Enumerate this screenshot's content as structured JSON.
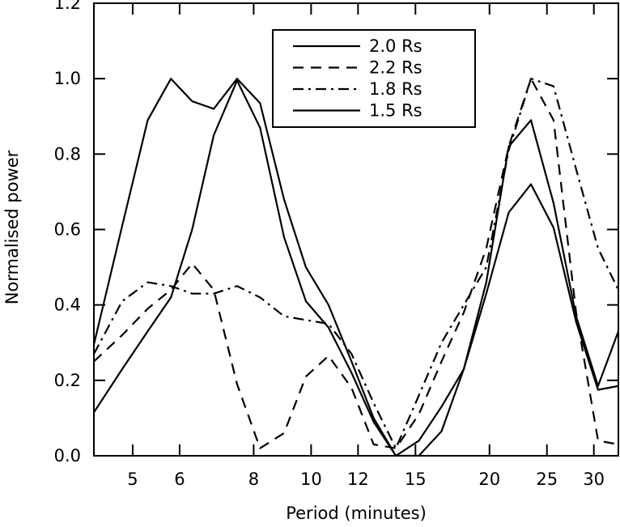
{
  "chart_data": {
    "type": "line",
    "xlabel": "Period (minutes)",
    "ylabel": "Normalised power",
    "x_scale": "log",
    "xlim": [
      4.3,
      33
    ],
    "ylim": [
      0,
      1.2
    ],
    "x_ticks": [
      {
        "value": 5,
        "label": "5"
      },
      {
        "value": 6,
        "label": "6"
      },
      {
        "value": 8,
        "label": "8"
      },
      {
        "value": 10,
        "label": "10"
      },
      {
        "value": 12,
        "label": "12"
      },
      {
        "value": 15,
        "label": "15"
      },
      {
        "value": 20,
        "label": "20"
      },
      {
        "value": 25,
        "label": "25"
      },
      {
        "value": 30,
        "label": "30"
      }
    ],
    "y_ticks": [
      {
        "value": 0,
        "label": "0.0"
      },
      {
        "value": 0.2,
        "label": "0.2"
      },
      {
        "value": 0.4,
        "label": "0.4"
      },
      {
        "value": 0.6,
        "label": "0.6"
      },
      {
        "value": 0.8,
        "label": "0.8"
      },
      {
        "value": 1.0,
        "label": "1.0"
      },
      {
        "value": 1.2,
        "label": "1.2"
      }
    ],
    "legend_position": "top-right",
    "grid": false,
    "series": [
      {
        "name": "2.0 Rs",
        "style": "solid",
        "x": [
          4.3,
          4.8,
          5.3,
          5.8,
          6.3,
          6.85,
          7.5,
          8.2,
          9.0,
          9.8,
          10.7,
          11.7,
          12.75,
          13.9,
          15.2,
          16.6,
          18.1,
          19.75,
          21.55,
          23.5,
          25.65,
          28.0,
          30.5,
          33.0
        ],
        "y": [
          0.295,
          0.61,
          0.89,
          1.0,
          0.94,
          0.92,
          1.0,
          0.935,
          0.68,
          0.5,
          0.4,
          0.25,
          0.1,
          0.0,
          0.0,
          0.065,
          0.23,
          0.43,
          0.645,
          0.72,
          0.605,
          0.355,
          0.175,
          0.185
        ]
      },
      {
        "name": "2.2 Rs",
        "style": "dashed",
        "x": [
          4.3,
          4.8,
          5.3,
          5.8,
          6.3,
          6.85,
          7.5,
          8.2,
          9.0,
          9.8,
          10.7,
          11.7,
          12.75,
          13.9,
          15.2,
          16.6,
          18.1,
          19.75,
          21.55,
          23.5,
          25.65,
          28.0,
          30.5,
          33.0
        ],
        "y": [
          0.25,
          0.32,
          0.39,
          0.44,
          0.51,
          0.44,
          0.19,
          0.02,
          0.06,
          0.21,
          0.265,
          0.18,
          0.03,
          0.02,
          0.11,
          0.25,
          0.38,
          0.55,
          0.82,
          1.0,
          0.89,
          0.38,
          0.04,
          0.03
        ]
      },
      {
        "name": "1.8 Rs",
        "style": "dashdot",
        "x": [
          4.3,
          4.8,
          5.3,
          5.8,
          6.3,
          6.85,
          7.5,
          8.2,
          9.0,
          9.8,
          10.7,
          11.7,
          12.75,
          13.9,
          15.2,
          16.6,
          18.1,
          19.75,
          21.55,
          23.5,
          25.65,
          28.0,
          30.5,
          33.0
        ],
        "y": [
          0.27,
          0.41,
          0.46,
          0.45,
          0.43,
          0.43,
          0.45,
          0.42,
          0.37,
          0.36,
          0.35,
          0.27,
          0.14,
          0.02,
          0.16,
          0.3,
          0.4,
          0.5,
          0.81,
          1.0,
          0.98,
          0.76,
          0.55,
          0.44
        ]
      },
      {
        "name": "1.5 Rs",
        "style": "solid",
        "x": [
          4.3,
          4.8,
          5.3,
          5.8,
          6.3,
          6.85,
          7.5,
          8.2,
          9.0,
          9.8,
          10.7,
          11.7,
          12.75,
          13.9,
          15.2,
          16.6,
          18.1,
          19.75,
          21.55,
          23.5,
          25.65,
          28.0,
          30.5,
          33.0
        ],
        "y": [
          0.115,
          0.23,
          0.33,
          0.42,
          0.6,
          0.85,
          0.995,
          0.87,
          0.58,
          0.41,
          0.34,
          0.22,
          0.09,
          0.0,
          0.04,
          0.13,
          0.23,
          0.46,
          0.82,
          0.89,
          0.67,
          0.37,
          0.185,
          0.33
        ]
      }
    ]
  }
}
